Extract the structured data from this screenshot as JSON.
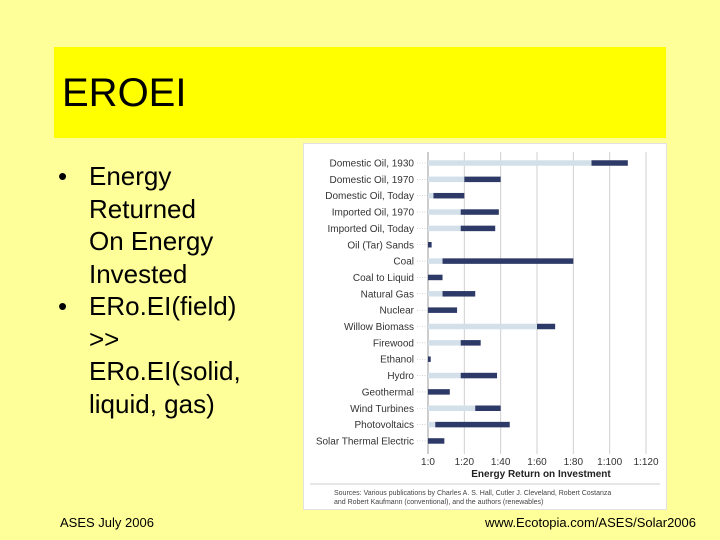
{
  "slide": {
    "title": "EROEI",
    "bullets": [
      "Energy\nReturned\nOn Energy\nInvested",
      "ERo.EI(field)\n>>\nERo.EI(solid,\nliquid, gas)"
    ],
    "bullet_symbol": "•",
    "footer_left": "ASES July 2006",
    "footer_right": "www.Ecotopia.com/ASES/Solar2006"
  },
  "colors": {
    "background": "#ffff99",
    "title_band": "#ffff00",
    "bar_range": "#d3e0ea",
    "bar_value": "#2d3a68"
  },
  "chart_data": {
    "type": "bar",
    "orientation": "horizontal",
    "xlabel": "Energy Return on Investment",
    "xlim": [
      0,
      120
    ],
    "xticks": [
      0,
      20,
      40,
      60,
      80,
      100,
      120
    ],
    "xtick_labels": [
      "1:0",
      "1:20",
      "1:40",
      "1:60",
      "1:80",
      "1:100",
      "1:120"
    ],
    "grid": "vertical",
    "categories": [
      "Domestic Oil, 1930",
      "Domestic Oil, 1970",
      "Domestic Oil, Today",
      "Imported Oil, 1970",
      "Imported Oil, Today",
      "Oil (Tar) Sands",
      "Coal",
      "Coal to Liquid",
      "Natural Gas",
      "Nuclear",
      "Willow Biomass",
      "Firewood",
      "Ethanol",
      "Hydro",
      "Geothermal",
      "Wind Turbines",
      "Photovoltaics",
      "Solar Thermal Electric"
    ],
    "ranges": [
      [
        0,
        90
      ],
      [
        0,
        20
      ],
      [
        0,
        3
      ],
      [
        0,
        18
      ],
      [
        0,
        18
      ],
      [
        0,
        0
      ],
      [
        0,
        8
      ],
      [
        0,
        0
      ],
      [
        0,
        8
      ],
      [
        0,
        0
      ],
      [
        0,
        60
      ],
      [
        0,
        18
      ],
      [
        0,
        0
      ],
      [
        0,
        18
      ],
      [
        0,
        0
      ],
      [
        0,
        26
      ],
      [
        0,
        4
      ],
      [
        0,
        0
      ]
    ],
    "values": [
      [
        90,
        110
      ],
      [
        20,
        40
      ],
      [
        3,
        20
      ],
      [
        18,
        39
      ],
      [
        18,
        37
      ],
      [
        0,
        2
      ],
      [
        8,
        80
      ],
      [
        0,
        8
      ],
      [
        8,
        26
      ],
      [
        0,
        16
      ],
      [
        60,
        70
      ],
      [
        18,
        29
      ],
      [
        0,
        1.5
      ],
      [
        18,
        38
      ],
      [
        0,
        12
      ],
      [
        26,
        40
      ],
      [
        4,
        45
      ],
      [
        0,
        9
      ]
    ],
    "source": [
      "Sources: Various publications by Charles A. S. Hall, Cutler J. Cleveland, Robert Costanza",
      "and Robert Kaufmann (conventional), and the authors (renewables)"
    ]
  }
}
